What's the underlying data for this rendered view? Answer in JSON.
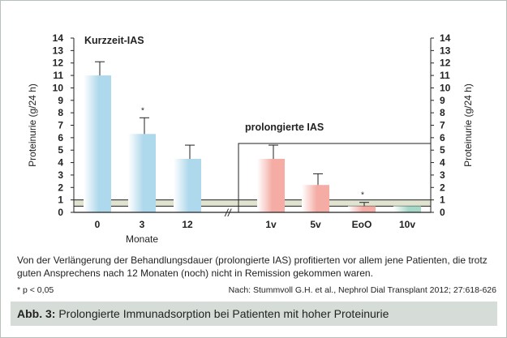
{
  "chart_data": {
    "type": "bar",
    "ylabel": "Proteinurie (g/24 h)",
    "ylabel_right": "Proteinurie (g/24 h)",
    "ylim": [
      0,
      14
    ],
    "yticks": [
      "0",
      "1",
      "2",
      "3",
      "4",
      "5",
      "6",
      "7",
      "8",
      "9",
      "10",
      "11",
      "12",
      "13",
      "14"
    ],
    "xlabel": "Monate",
    "axis_break": "//",
    "reference_band": [
      0.5,
      1
    ],
    "groups": [
      {
        "label": "Kurzzeit-IAS",
        "color": "#aed8ec",
        "bars": [
          {
            "category": "0",
            "value": 11.0,
            "error": 1.1,
            "significant": ""
          },
          {
            "category": "3",
            "value": 6.3,
            "error": 1.3,
            "significant": "*"
          },
          {
            "category": "12",
            "value": 4.3,
            "error": 1.1,
            "significant": ""
          }
        ]
      },
      {
        "label": "prolongierte IAS",
        "color": "#f4aca4",
        "bars": [
          {
            "category": "1v",
            "value": 4.3,
            "error": 1.1,
            "significant": ""
          },
          {
            "category": "5v",
            "value": 2.2,
            "error": 0.9,
            "significant": ""
          },
          {
            "category": "EoO",
            "value": 0.5,
            "error": 0.3,
            "significant": "*"
          },
          {
            "category": "10v",
            "value": 0.5,
            "error": 0.0,
            "significant": "",
            "color": "#a5d8c9"
          }
        ]
      }
    ]
  },
  "caption": {
    "text": "Von der Verlängerung der Behandlungsdauer (prolongierte IAS) profitierten vor allem jene Patienten, die trotz guten Ansprechens nach 12 Monaten (noch) nicht in Remission gekommen waren.",
    "footnote": "* p < 0,05",
    "source": "Nach: Stummvoll G.H. et al., Nephrol Dial Transplant 2012; 27:618-626",
    "figure_label": "Abb. 3:",
    "figure_title": "Prolongierte Immunadsorption bei Patienten mit hoher Proteinurie"
  }
}
